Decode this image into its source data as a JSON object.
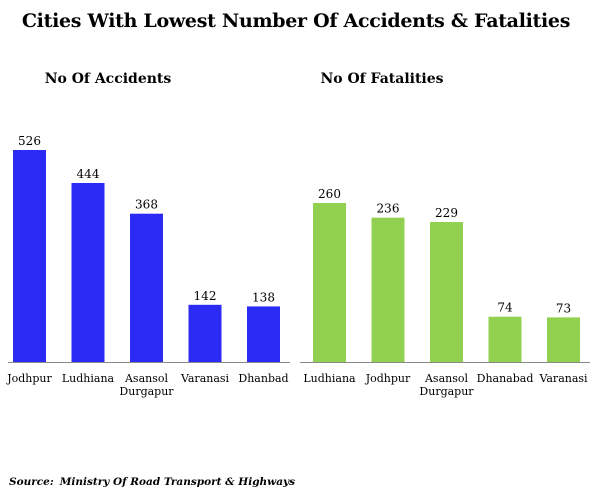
{
  "title": "Cities With Lowest Number Of Accidents & Fatalities",
  "source": {
    "label": "Source:",
    "text": "Ministry Of Road Transport  & Highways"
  },
  "colors": {
    "accidents_bar": "#2b2bf4",
    "fatalities_bar": "#92d050",
    "axis": "#888888"
  },
  "chart_data": [
    {
      "type": "bar",
      "title": "No Of Accidents",
      "categories": [
        "Jodhpur",
        "Ludhiana",
        "Asansol\nDurgapur",
        "Varanasi",
        "Dhanbad"
      ],
      "values": [
        526,
        444,
        368,
        142,
        138
      ],
      "xlabel": "",
      "ylabel": "",
      "ylim": [
        0,
        560
      ],
      "grid": false,
      "legend": "none"
    },
    {
      "type": "bar",
      "title": "No Of Fatalities",
      "categories": [
        "Ludhiana",
        "Jodhpur",
        "Asansol\nDurgapur",
        "Dhanabad",
        "Varanasi"
      ],
      "values": [
        260,
        236,
        229,
        74,
        73
      ],
      "xlabel": "",
      "ylabel": "",
      "ylim": [
        0,
        280
      ],
      "grid": false,
      "legend": "none"
    }
  ]
}
